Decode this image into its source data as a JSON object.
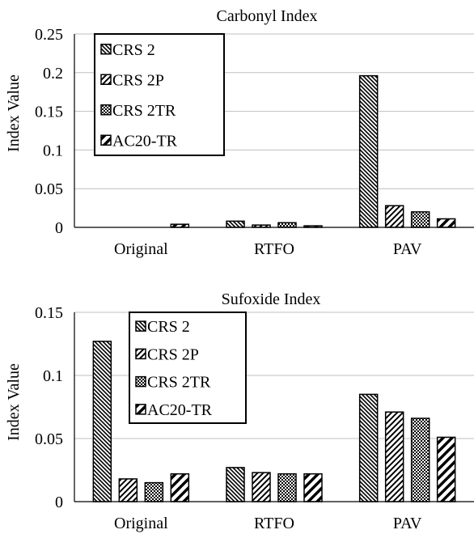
{
  "colors": {
    "ink": "#000000",
    "grid": "#bfbfbf",
    "background": "#ffffff"
  },
  "icons": {
    "legend_swatch": "hatched-square-icon"
  },
  "chart_data": [
    {
      "type": "bar",
      "title": "Carbonyl Index",
      "xlabel": "",
      "ylabel": "Index Value",
      "ylim": [
        0,
        0.25
      ],
      "yticks": [
        0,
        0.05,
        0.1,
        0.15,
        0.2,
        0.25
      ],
      "ytick_labels": [
        "0",
        "0.05",
        "0.1",
        "0.15",
        "0.2",
        "0.25"
      ],
      "grid": true,
      "legend_position": "top-left",
      "categories": [
        "Original",
        "RTFO",
        "PAV"
      ],
      "series": [
        {
          "name": "CRS 2",
          "pattern": "hatch-dense",
          "values": [
            0,
            0.008,
            0.196
          ]
        },
        {
          "name": "CRS 2P",
          "pattern": "hatch-wide",
          "values": [
            0,
            0.003,
            0.028
          ]
        },
        {
          "name": "CRS 2TR",
          "pattern": "checker",
          "values": [
            0,
            0.006,
            0.02
          ]
        },
        {
          "name": "AC20-TR",
          "pattern": "hatch-bold",
          "values": [
            0.004,
            0.002,
            0.011
          ]
        }
      ]
    },
    {
      "type": "bar",
      "title": "Sufoxide Index",
      "xlabel": "",
      "ylabel": "Index Value",
      "ylim": [
        0,
        0.15
      ],
      "yticks": [
        0,
        0.05,
        0.1,
        0.15
      ],
      "ytick_labels": [
        "0",
        "0.05",
        "0.1",
        "0.15"
      ],
      "grid": true,
      "legend_position": "top-left",
      "categories": [
        "Original",
        "RTFO",
        "PAV"
      ],
      "series": [
        {
          "name": "CRS 2",
          "pattern": "hatch-dense",
          "values": [
            0.127,
            0.027,
            0.085
          ]
        },
        {
          "name": "CRS 2P",
          "pattern": "hatch-wide",
          "values": [
            0.018,
            0.023,
            0.071
          ]
        },
        {
          "name": "CRS 2TR",
          "pattern": "checker",
          "values": [
            0.015,
            0.022,
            0.066
          ]
        },
        {
          "name": "AC20-TR",
          "pattern": "hatch-bold",
          "values": [
            0.022,
            0.022,
            0.051
          ]
        }
      ]
    }
  ]
}
